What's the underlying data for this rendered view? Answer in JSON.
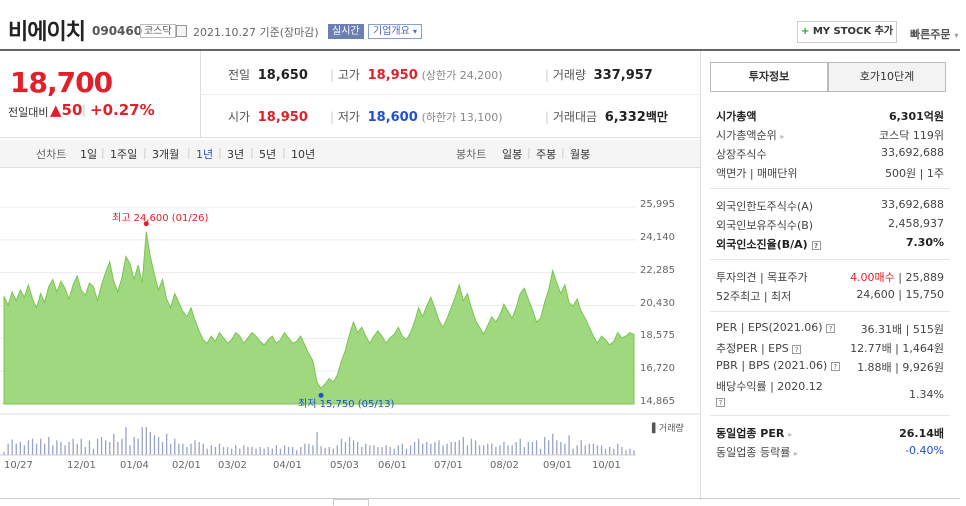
{
  "header": {
    "title": "비에이치",
    "code": "090460",
    "market": "코스닥",
    "date_text": "2021.10.27 기준(장마감)",
    "realtime": "실시간",
    "company_info": "기업개요",
    "mystock": "MY STOCK 추가",
    "quick_order": "빠른주문"
  },
  "price": {
    "current": "18,700",
    "change_label": "전일대비",
    "change": "▲50",
    "change_pct": "+0.27%"
  },
  "quote": {
    "prev_label": "전일",
    "prev": "18,650",
    "high_label": "고가",
    "high": "18,950",
    "upper_limit": "(상한가 24,200)",
    "volume_label": "거래량",
    "volume": "337,957",
    "open_label": "시가",
    "open": "18,950",
    "low_label": "저가",
    "low": "18,600",
    "lower_limit": "(하한가 13,100)",
    "amount_label": "거래대금",
    "amount": "6,332",
    "amount_unit": "백만"
  },
  "periods": {
    "line_label": "선차트",
    "items": [
      "1일",
      "1주일",
      "3개월",
      "1년",
      "3년",
      "5년",
      "10년"
    ],
    "active": "1년",
    "candle_label": "봉차트",
    "candles": [
      "일봉",
      "주봉",
      "월봉"
    ]
  },
  "chart_data": {
    "type": "area",
    "title": "",
    "ylim": [
      14865,
      25995
    ],
    "yticks": [
      "25,995",
      "24,140",
      "22,285",
      "20,430",
      "18,575",
      "16,720",
      "14,865"
    ],
    "xticks": [
      "10/27",
      "12/01",
      "01/04",
      "02/01",
      "03/02",
      "04/01",
      "05/03",
      "06/01",
      "07/01",
      "08/02",
      "09/01",
      "10/01"
    ],
    "high_annotation": "최고 24,600 (01/26)",
    "low_annotation": "최저 15,750 (05/13)",
    "volume_label": "거래량",
    "color": "#8fd16a",
    "values": [
      20950,
      20450,
      21200,
      20700,
      21300,
      20900,
      21600,
      20800,
      20300,
      21100,
      20600,
      21500,
      21900,
      21200,
      21800,
      21400,
      20800,
      21600,
      22100,
      21300,
      21000,
      21700,
      21500,
      20700,
      21600,
      22300,
      22900,
      21800,
      21200,
      22000,
      23200,
      22800,
      21900,
      22700,
      21700,
      24600,
      23200,
      22200,
      21300,
      21900,
      20800,
      20300,
      21100,
      20600,
      20100,
      19800,
      20300,
      19600,
      19000,
      18500,
      18300,
      18700,
      18400,
      18900,
      18600,
      18300,
      18500,
      18900,
      18700,
      18300,
      18600,
      18900,
      18700,
      18400,
      18200,
      18500,
      18700,
      18300,
      18500,
      18900,
      18600,
      18300,
      18400,
      18700,
      18200,
      17700,
      17300,
      16100,
      15750,
      16000,
      16300,
      16100,
      16500,
      17300,
      17900,
      18800,
      19500,
      18900,
      19200,
      18700,
      18300,
      18700,
      19000,
      18700,
      18300,
      18600,
      18800,
      19200,
      18700,
      18500,
      18900,
      19500,
      20300,
      19800,
      20400,
      20900,
      20300,
      19600,
      19200,
      19700,
      20300,
      20900,
      21600,
      20700,
      21100,
      20300,
      19600,
      19200,
      18800,
      19300,
      19800,
      19500,
      19900,
      20500,
      20100,
      19700,
      20300,
      21100,
      21400,
      20800,
      20200,
      19500,
      19700,
      20600,
      21300,
      22400,
      21700,
      21100,
      21600,
      20600,
      20400,
      20800,
      20100,
      19700,
      19200,
      18700,
      18300,
      18700,
      18500,
      18200,
      18400,
      18900,
      18600,
      18700,
      18900,
      18800
    ]
  },
  "panel": {
    "tab_active": "투자정보",
    "tab_other": "호가10단계",
    "rows": [
      {
        "label": "시가총액",
        "value": "6,301억원"
      },
      {
        "label": "시가총액순위",
        "value": "코스닥 119위"
      },
      {
        "label": "상장주식수",
        "value": "33,692,688"
      },
      {
        "label": "액면가 | 매매단위",
        "value": "500원 | 1주"
      },
      {
        "label": "외국인한도주식수(A)",
        "value": "33,692,688"
      },
      {
        "label": "외국인보유주식수(B)",
        "value": "2,458,937"
      },
      {
        "label": "외국인소진율(B/A)",
        "value": "7.30%"
      },
      {
        "label": "투자의견 | 목표주가",
        "opinion": "4.00매수",
        "target": "25,889"
      },
      {
        "label": "52주최고 | 최저",
        "value": "24,600 | 15,750"
      },
      {
        "label": "PER | EPS(2021.06)",
        "value": "36.31배 | 515원"
      },
      {
        "label": "추정PER | EPS",
        "value": "12.77배 | 1,464원"
      },
      {
        "label": "PBR | BPS (2021.06)",
        "value": "1.88배 | 9,926원"
      },
      {
        "label": "배당수익률 | 2020.12",
        "value": "1.34%"
      },
      {
        "label": "동일업종 PER",
        "value": "26.14배"
      },
      {
        "label": "동일업종 등락률",
        "value": "-0.40%"
      }
    ]
  }
}
